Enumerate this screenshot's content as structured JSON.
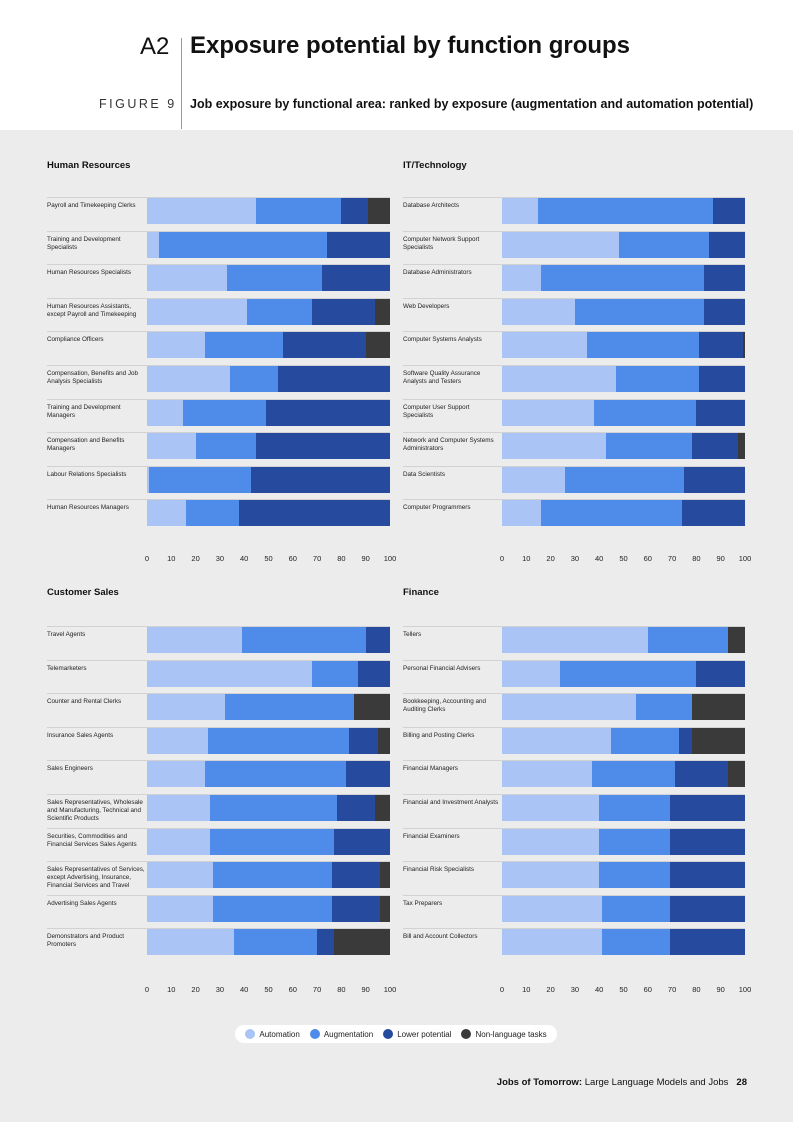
{
  "header": {
    "section_num": "A2",
    "title": "Exposure potential by function groups",
    "figure_label": "FIGURE 9",
    "figure_subtitle": "Job exposure by functional area: ranked by exposure (augmentation and automation potential)"
  },
  "colors": {
    "automation": "#a9c4f5",
    "augmentation": "#4f8be8",
    "lower": "#254a9e",
    "nonlang": "#3a3a3a"
  },
  "chart_data": [
    {
      "type": "bar",
      "title": "Human Resources",
      "xlim": [
        0,
        100
      ],
      "xticks": [
        "0",
        "10",
        "20",
        "30",
        "40",
        "50",
        "60",
        "70",
        "80",
        "90",
        "100"
      ],
      "categories": [
        "Payroll and Timekeeping Clerks",
        "Training and Development Specialists",
        "Human Resources Specialists",
        "Human Resources Assistants, except Payroll and Timekeeping",
        "Compliance Officers",
        "Compensation, Benefits and Job Analysis Specialists",
        "Training and Development Managers",
        "Compensation and Benefits Managers",
        "Labour Relations Specialists",
        "Human Resources Managers"
      ],
      "series": [
        {
          "name": "Automation",
          "values": [
            45,
            5,
            33,
            41,
            24,
            34,
            15,
            20,
            1,
            16
          ]
        },
        {
          "name": "Augmentation",
          "values": [
            35,
            69,
            39,
            27,
            32,
            20,
            34,
            25,
            42,
            22
          ]
        },
        {
          "name": "Lower potential",
          "values": [
            11,
            26,
            28,
            26,
            34,
            46,
            51,
            55,
            57,
            62
          ]
        },
        {
          "name": "Non-language tasks",
          "values": [
            9,
            0,
            0,
            6,
            10,
            0,
            0,
            0,
            0,
            0
          ]
        }
      ]
    },
    {
      "type": "bar",
      "title": "IT/Technology",
      "xlim": [
        0,
        100
      ],
      "xticks": [
        "0",
        "10",
        "20",
        "30",
        "40",
        "50",
        "60",
        "70",
        "80",
        "90",
        "100"
      ],
      "categories": [
        "Database Architects",
        "Computer Network Support Specialists",
        "Database Administrators",
        "Web Developers",
        "Computer Systems Analysts",
        "Software Quality Assurance Analysts and Testers",
        "Computer User Support Specialists",
        "Network and Computer Systems Administrators",
        "Data Scientists",
        "Computer Programmers"
      ],
      "series": [
        {
          "name": "Automation",
          "values": [
            15,
            48,
            16,
            30,
            35,
            47,
            38,
            43,
            26,
            16
          ]
        },
        {
          "name": "Augmentation",
          "values": [
            72,
            37,
            67,
            53,
            46,
            34,
            42,
            35,
            49,
            58
          ]
        },
        {
          "name": "Lower potential",
          "values": [
            13,
            15,
            17,
            17,
            18,
            19,
            20,
            19,
            25,
            26
          ]
        },
        {
          "name": "Non-language tasks",
          "values": [
            0,
            0,
            0,
            0,
            1,
            0,
            0,
            3,
            0,
            0
          ]
        }
      ]
    },
    {
      "type": "bar",
      "title": "Customer Sales",
      "xlim": [
        0,
        100
      ],
      "xticks": [
        "0",
        "10",
        "20",
        "30",
        "40",
        "50",
        "60",
        "70",
        "80",
        "90",
        "100"
      ],
      "categories": [
        "Travel Agents",
        "Telemarketers",
        "Counter and Rental Clerks",
        "Insurance Sales Agents",
        "Sales Engineers",
        "Sales Representatives, Wholesale and Manufacturing, Technical and Scientific Products",
        "Securities, Commodities and Financial Services Sales Agents",
        "Sales Representatives of Services, except Advertising, Insurance, Financial Services and Travel",
        "Advertising Sales Agents",
        "Demonstrators and Product Promoters"
      ],
      "series": [
        {
          "name": "Automation",
          "values": [
            39,
            68,
            32,
            25,
            24,
            26,
            26,
            27,
            27,
            36
          ]
        },
        {
          "name": "Augmentation",
          "values": [
            51,
            19,
            53,
            58,
            58,
            52,
            51,
            49,
            49,
            34
          ]
        },
        {
          "name": "Lower potential",
          "values": [
            10,
            13,
            0,
            12,
            18,
            16,
            23,
            20,
            20,
            7
          ]
        },
        {
          "name": "Non-language tasks",
          "values": [
            0,
            0,
            15,
            5,
            0,
            6,
            0,
            4,
            4,
            23
          ]
        }
      ]
    },
    {
      "type": "bar",
      "title": "Finance",
      "xlim": [
        0,
        100
      ],
      "xticks": [
        "0",
        "10",
        "20",
        "30",
        "40",
        "50",
        "60",
        "70",
        "80",
        "90",
        "100"
      ],
      "categories": [
        "Tellers",
        "Personal Financial Advisers",
        "Bookkeeping, Accounting and Auditing Clerks",
        "Billing and Posting Clerks",
        "Financial Managers",
        "Financial and Investment Analysts",
        "Financial Examiners",
        "Financial Risk Specialists",
        "Tax Preparers",
        "Bill and Account Collectors"
      ],
      "series": [
        {
          "name": "Automation",
          "values": [
            60,
            24,
            55,
            45,
            37,
            40,
            40,
            40,
            41,
            41
          ]
        },
        {
          "name": "Augmentation",
          "values": [
            33,
            56,
            23,
            28,
            34,
            29,
            29,
            29,
            28,
            28
          ]
        },
        {
          "name": "Lower potential",
          "values": [
            0,
            20,
            0,
            5,
            22,
            31,
            31,
            31,
            31,
            31
          ]
        },
        {
          "name": "Non-language tasks",
          "values": [
            7,
            0,
            22,
            22,
            7,
            0,
            0,
            0,
            0,
            0
          ]
        }
      ]
    }
  ],
  "legend": {
    "automation": "Automation",
    "augmentation": "Augmentation",
    "lower": "Lower potential",
    "nonlang": "Non-language tasks"
  },
  "footer": {
    "bold": "Jobs of Tomorrow:",
    "rest": " Large Language Models and Jobs",
    "page": "28"
  }
}
